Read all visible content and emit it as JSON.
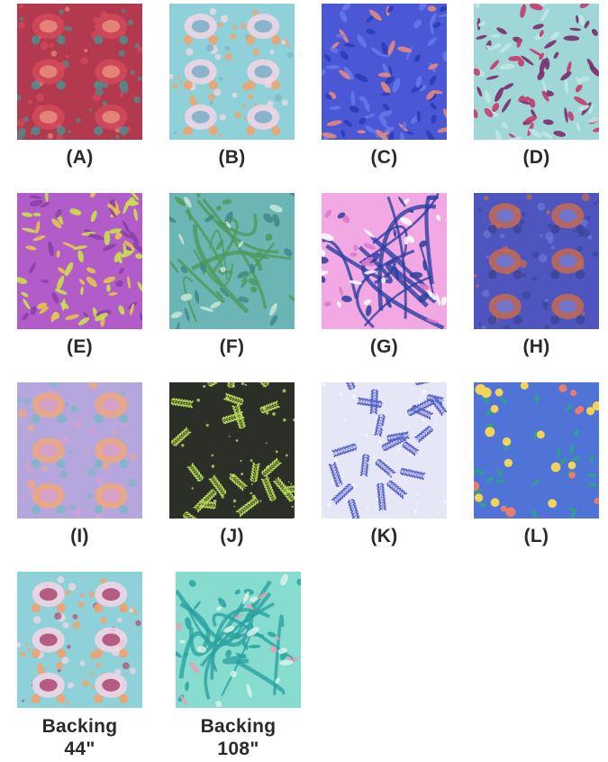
{
  "swatches": [
    {
      "label": "(A)",
      "bg": "#b3394f",
      "c1": "#d24a5b",
      "c2": "#4f8c8a",
      "c3": "#e58a7b",
      "style": "damask"
    },
    {
      "label": "(B)",
      "bg": "#8fd1d8",
      "c1": "#f5d6e6",
      "c2": "#f3a16c",
      "c3": "#7fb0c9",
      "style": "damask"
    },
    {
      "label": "(C)",
      "bg": "#4a58d6",
      "c1": "#6677ea",
      "c2": "#e48a7c",
      "c3": "#2e3db6",
      "style": "leaves"
    },
    {
      "label": "(D)",
      "bg": "#9ed7d6",
      "c1": "#7a2c6d",
      "c2": "#c43b6b",
      "c3": "#bfe7e4",
      "style": "leaves"
    },
    {
      "label": "(E)",
      "bg": "#b15cc9",
      "c1": "#c9e04a",
      "c2": "#e6c34d",
      "c3": "#8a3fa8",
      "style": "leaves"
    },
    {
      "label": "(F)",
      "bg": "#6bb6b4",
      "c1": "#4f9a5a",
      "c2": "#c9e8d8",
      "c3": "#3e8a86",
      "style": "vines"
    },
    {
      "label": "(G)",
      "bg": "#f1a8e3",
      "c1": "#2c3f9f",
      "c2": "#ffffff",
      "c3": "#d679c9",
      "style": "vines"
    },
    {
      "label": "(H)",
      "bg": "#4e55bf",
      "c1": "#c56b4f",
      "c2": "#3c4799",
      "c3": "#6a78d6",
      "style": "damask"
    },
    {
      "label": "(I)",
      "bg": "#b6a6de",
      "c1": "#f0a77c",
      "c2": "#7eb6c7",
      "c3": "#d3a0d2",
      "style": "damask"
    },
    {
      "label": "(J)",
      "bg": "#2b2f28",
      "c1": "#b9d857",
      "c2": "#8fb43d",
      "c3": "#d7ea7c",
      "style": "ferns"
    },
    {
      "label": "(K)",
      "bg": "#e6e7f6",
      "c1": "#5560c7",
      "c2": "#8e98dd",
      "c3": "#ffffff",
      "style": "ferns"
    },
    {
      "label": "(L)",
      "bg": "#4f73d6",
      "c1": "#f1d458",
      "c2": "#e97c6e",
      "c3": "#2fa18a",
      "style": "fruit"
    }
  ],
  "backings": [
    {
      "label_line1": "Backing",
      "label_line2": "44\"",
      "bg": "#8fd1d8",
      "c1": "#f5d6e6",
      "c2": "#f3a16c",
      "c3": "#b04f77",
      "style": "damask"
    },
    {
      "label_line1": "Backing",
      "label_line2": "108\"",
      "bg": "#86dccf",
      "c1": "#2aa3a0",
      "c2": "#e7a0b3",
      "c3": "#d9f2ea",
      "style": "vines"
    }
  ]
}
